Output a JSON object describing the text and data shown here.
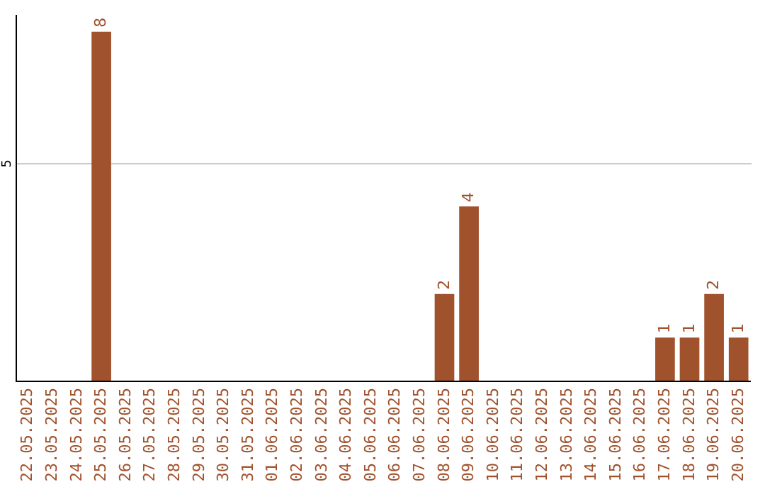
{
  "chart_data": {
    "type": "bar",
    "categories": [
      "22.05.2025",
      "23.05.2025",
      "24.05.2025",
      "25.05.2025",
      "26.05.2025",
      "27.05.2025",
      "28.05.2025",
      "29.05.2025",
      "30.05.2025",
      "31.05.2025",
      "01.06.2025",
      "02.06.2025",
      "03.06.2025",
      "04.06.2025",
      "05.06.2025",
      "06.06.2025",
      "07.06.2025",
      "08.06.2025",
      "09.06.2025",
      "10.06.2025",
      "11.06.2025",
      "12.06.2025",
      "13.06.2025",
      "14.06.2025",
      "15.06.2025",
      "16.06.2025",
      "17.06.2025",
      "18.06.2025",
      "19.06.2025",
      "20.06.2025"
    ],
    "values": [
      0,
      0,
      0,
      8,
      0,
      0,
      0,
      0,
      0,
      0,
      0,
      0,
      0,
      0,
      0,
      0,
      0,
      2,
      4,
      0,
      0,
      0,
      0,
      0,
      0,
      0,
      1,
      1,
      2,
      1
    ],
    "value_labels": [
      null,
      null,
      null,
      "8",
      null,
      null,
      null,
      null,
      null,
      null,
      null,
      null,
      null,
      null,
      null,
      null,
      null,
      "2",
      "4",
      null,
      null,
      null,
      null,
      null,
      null,
      null,
      "1",
      "1",
      "2",
      "1"
    ],
    "color": "#a0522d",
    "ylim": [
      0,
      8.4
    ],
    "yticks": [
      5
    ],
    "grid": "y"
  }
}
